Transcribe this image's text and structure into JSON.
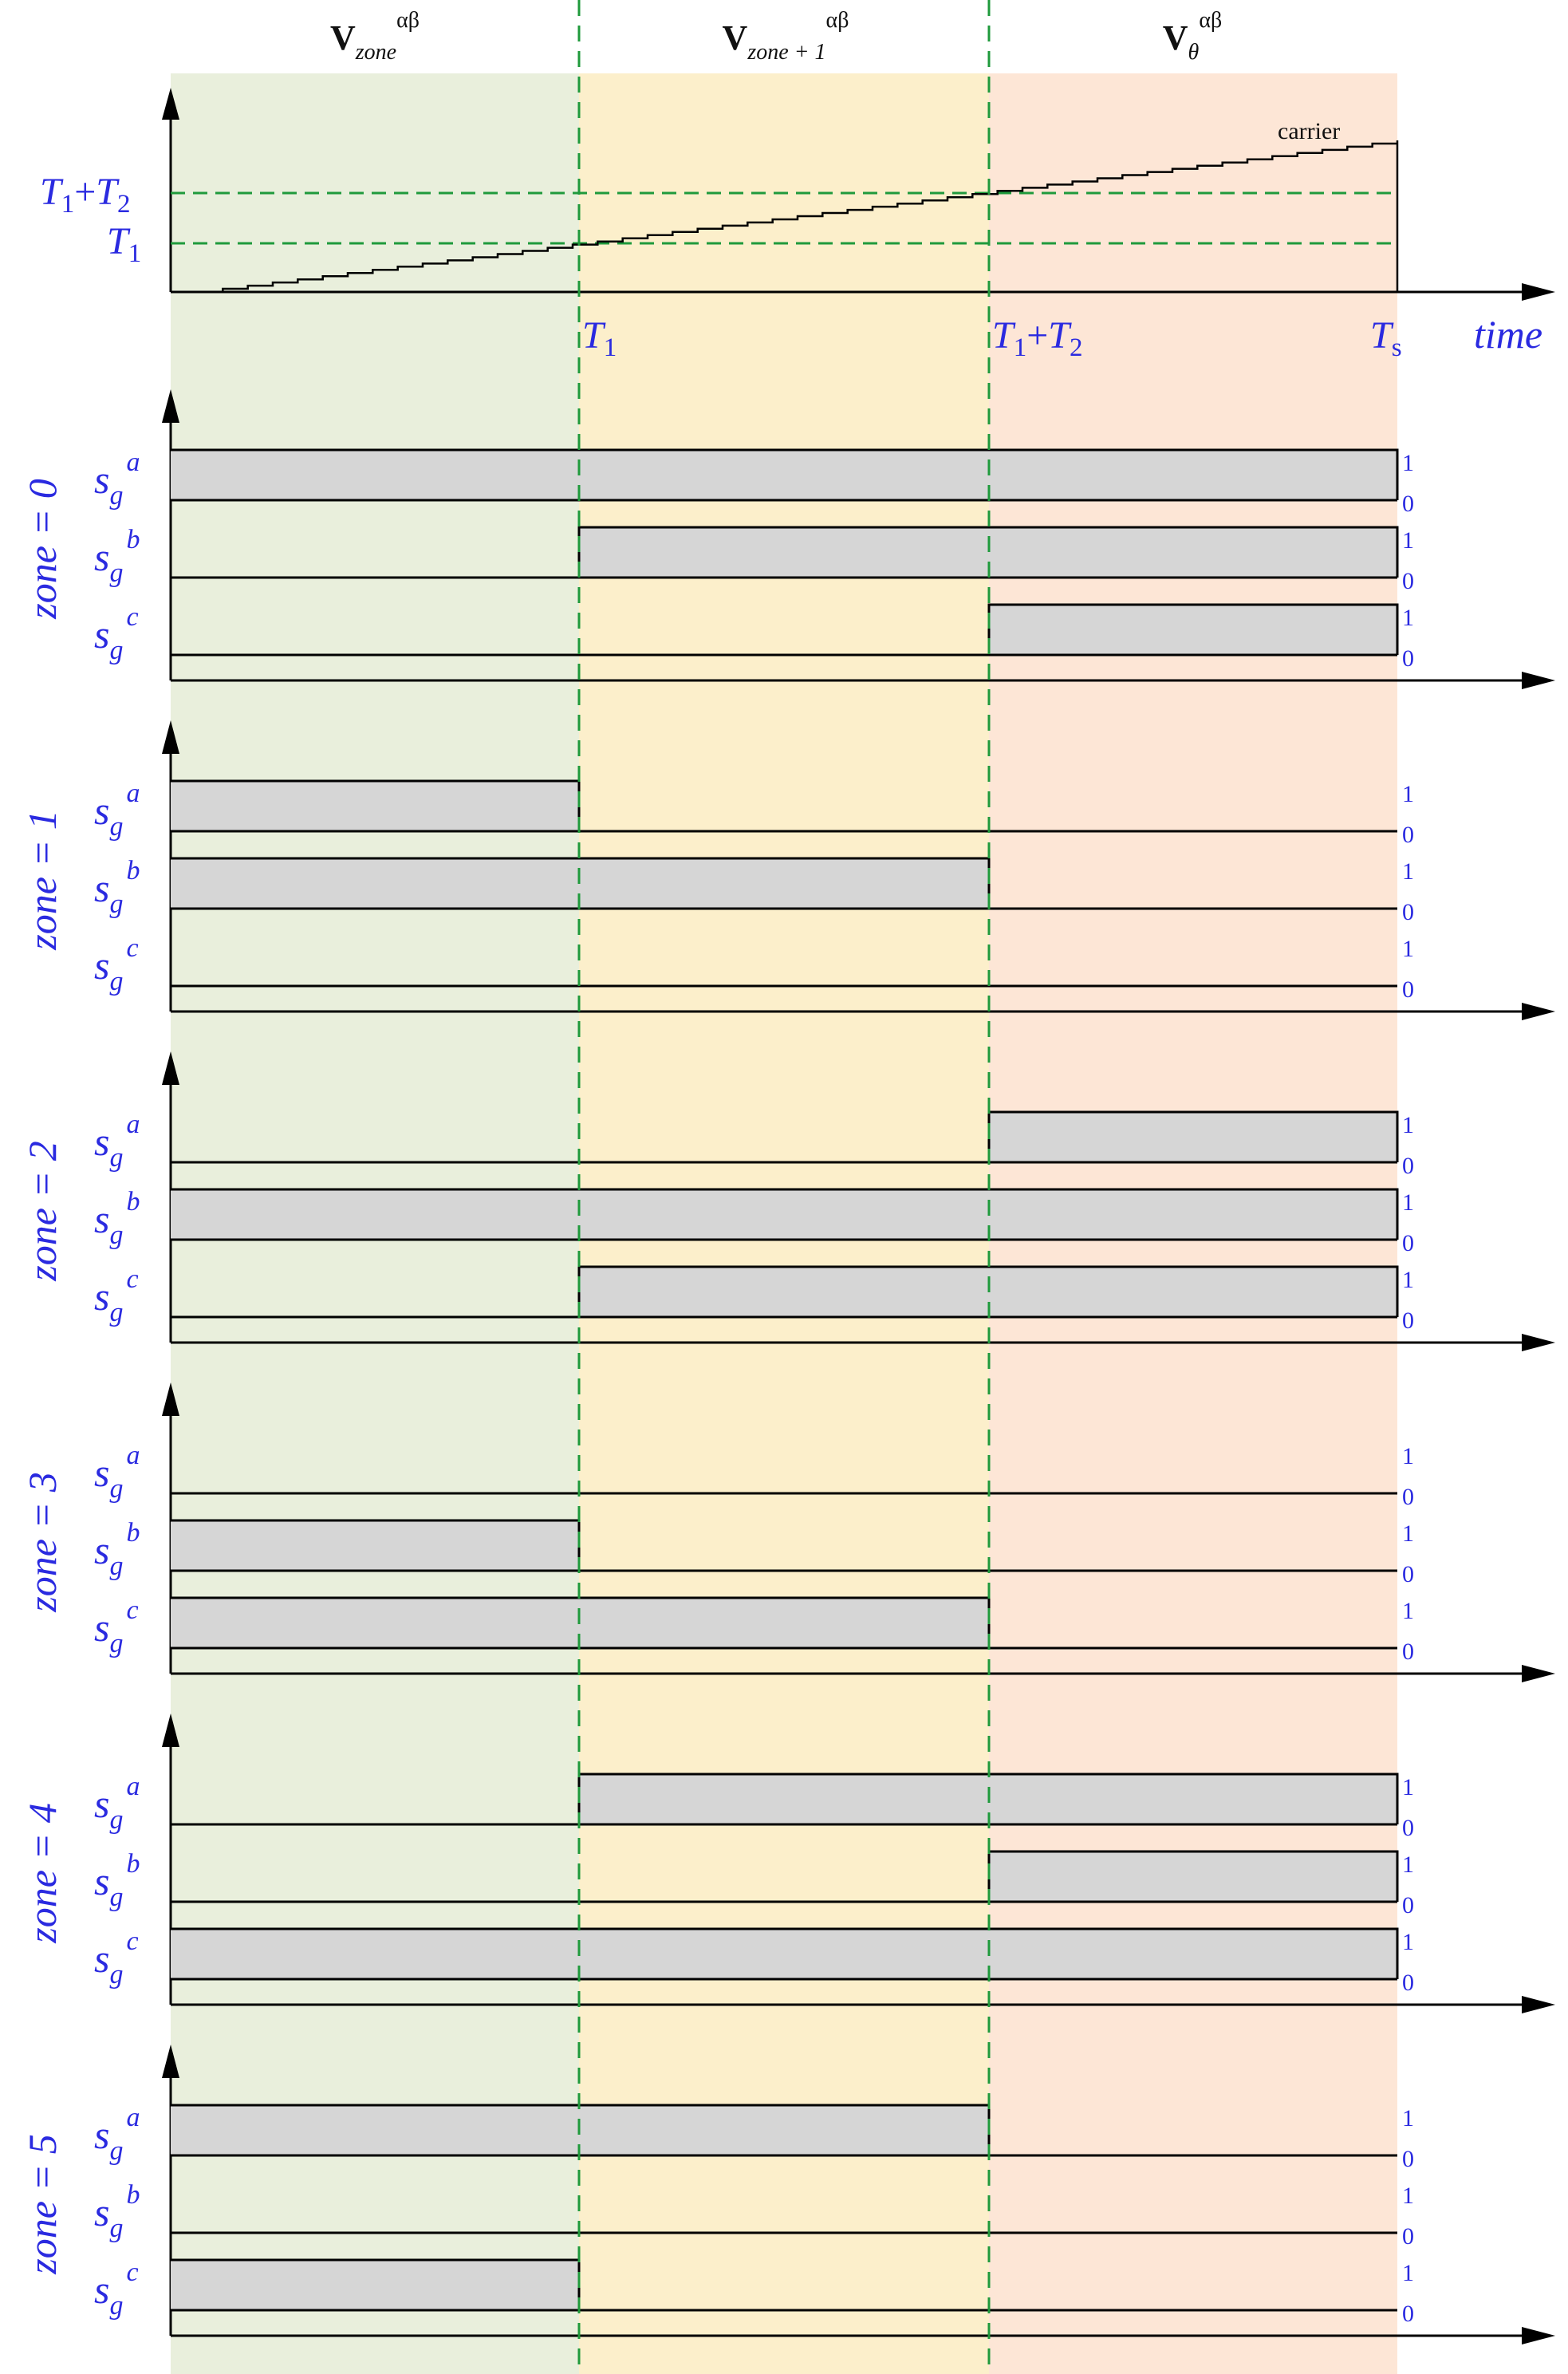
{
  "colors": {
    "zone_green": "#e9efdc",
    "zone_yellow": "#fcefcb",
    "zone_peach": "#fde6d6",
    "divider": "#1f9a3c",
    "pulse_fill": "#d6d6d6",
    "axis": "#000000",
    "label_blue": "#2a2ae0"
  },
  "top": {
    "headers": [
      {
        "base": "V",
        "sub": "zone",
        "sup": "αβ"
      },
      {
        "base": "V",
        "sub": "zone + 1",
        "sup": "αβ"
      },
      {
        "base": "V",
        "sub": "θ",
        "sup": "αβ"
      }
    ],
    "carrier_label": "carrier",
    "carrier_steps": 48,
    "levels": [
      {
        "id": "t1t2",
        "base": "T",
        "sub1": "1",
        "op": "+",
        "base2": "T",
        "sub2": "2"
      },
      {
        "id": "t1",
        "base": "T",
        "sub1": "1"
      }
    ],
    "axis_marks": [
      {
        "id": "t1",
        "base": "T",
        "sub": "1"
      },
      {
        "id": "t1t2",
        "base": "T",
        "sub": "1",
        "op": "+",
        "base2": "T",
        "sub2": "2"
      },
      {
        "id": "ts",
        "base": "T",
        "sub": "s"
      }
    ],
    "time_label": "time"
  },
  "signals": {
    "base": "s",
    "sub": "g",
    "phases": [
      "a",
      "b",
      "c"
    ],
    "high_label": "1",
    "low_label": "0"
  },
  "zones": [
    {
      "label": "zone = 0",
      "states": [
        [
          1,
          1,
          1
        ],
        [
          0,
          1,
          1
        ],
        [
          0,
          0,
          1
        ]
      ]
    },
    {
      "label": "zone = 1",
      "states": [
        [
          1,
          0,
          0
        ],
        [
          1,
          1,
          0
        ],
        [
          0,
          0,
          0
        ]
      ]
    },
    {
      "label": "zone = 2",
      "states": [
        [
          0,
          0,
          1
        ],
        [
          1,
          1,
          1
        ],
        [
          0,
          1,
          1
        ]
      ]
    },
    {
      "label": "zone = 3",
      "states": [
        [
          0,
          0,
          0
        ],
        [
          1,
          0,
          0
        ],
        [
          1,
          1,
          0
        ]
      ]
    },
    {
      "label": "zone = 4",
      "states": [
        [
          0,
          1,
          1
        ],
        [
          0,
          0,
          1
        ],
        [
          1,
          1,
          1
        ]
      ]
    },
    {
      "label": "zone = 5",
      "states": [
        [
          1,
          1,
          0
        ],
        [
          0,
          0,
          0
        ],
        [
          1,
          0,
          0
        ]
      ]
    }
  ]
}
